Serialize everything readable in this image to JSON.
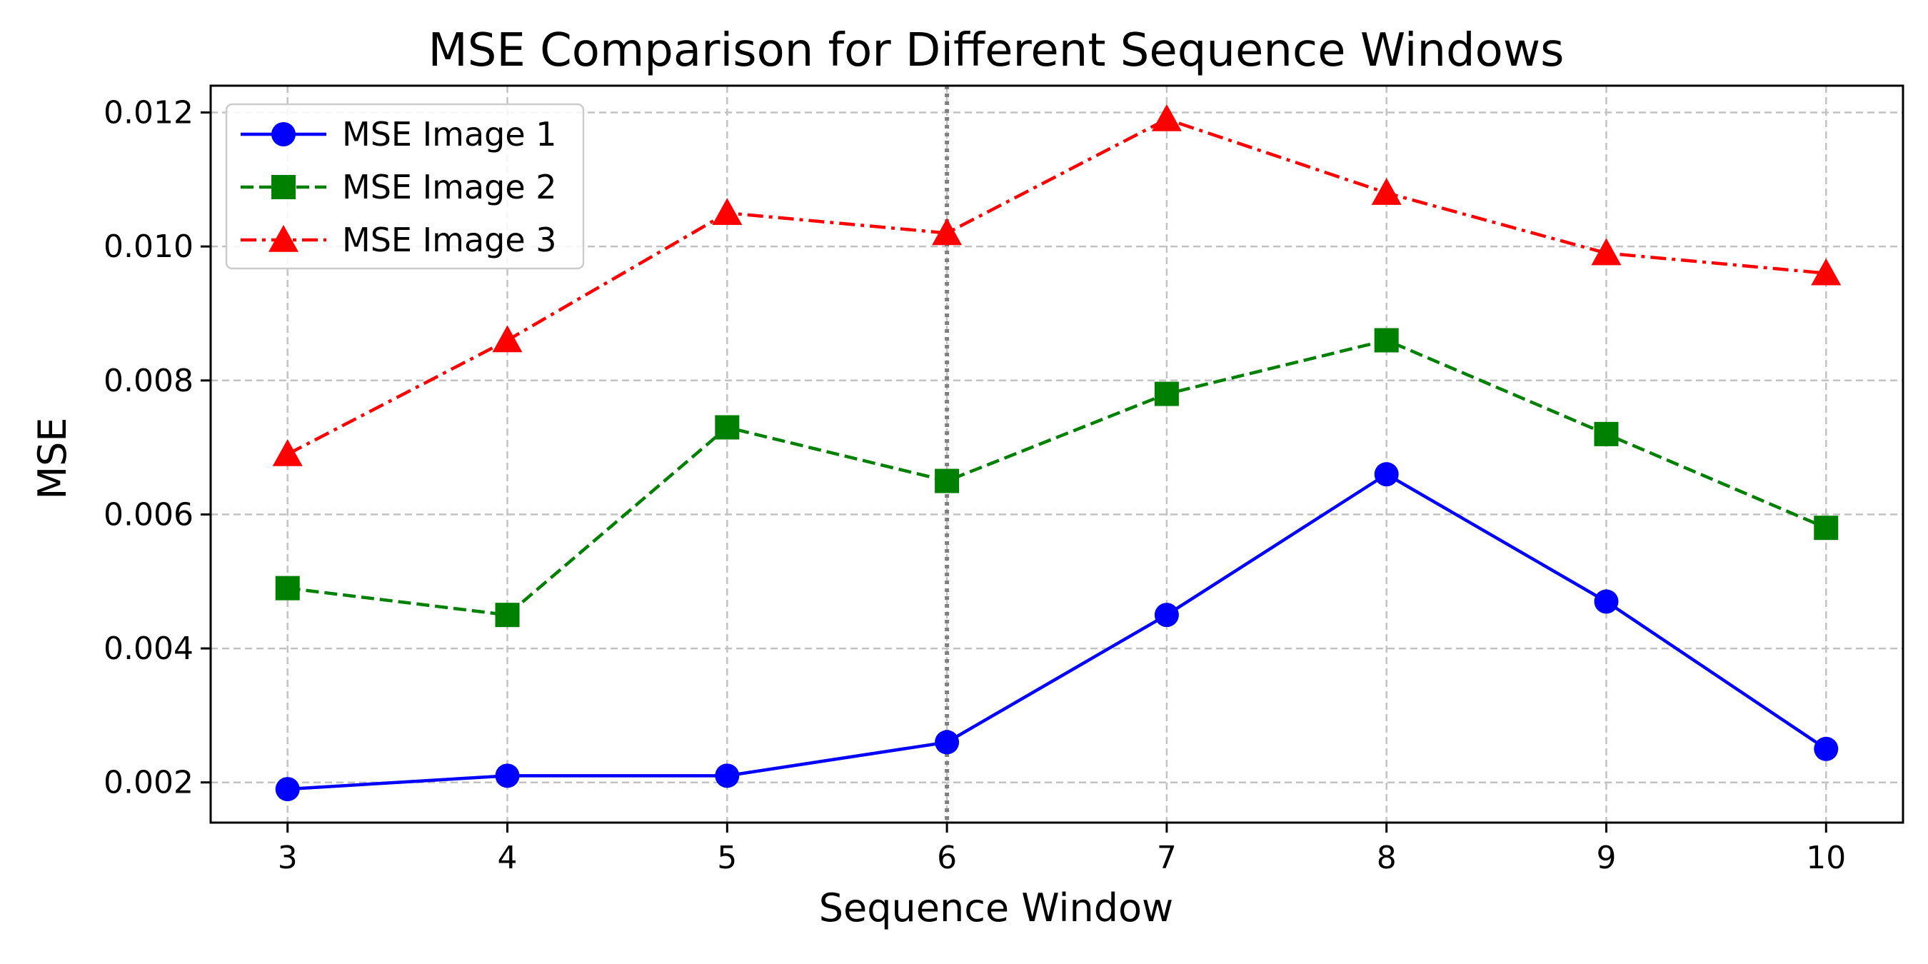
{
  "chart_data": {
    "type": "line",
    "title": "MSE Comparison for Different Sequence Windows",
    "xlabel": "Sequence Window",
    "ylabel": "MSE",
    "x": [
      3,
      4,
      5,
      6,
      7,
      8,
      9,
      10
    ],
    "xlim": [
      2.65,
      10.35
    ],
    "ylim": [
      0.0014,
      0.0124
    ],
    "xticks": [
      "3",
      "4",
      "5",
      "6",
      "7",
      "8",
      "9",
      "10"
    ],
    "yticks": [
      "0.002",
      "0.004",
      "0.006",
      "0.008",
      "0.010",
      "0.012"
    ],
    "ytick_values": [
      0.002,
      0.004,
      0.006,
      0.008,
      0.01,
      0.012
    ],
    "grid": true,
    "legend_position": "upper-left",
    "reference_line": {
      "x": 6,
      "style": "dotted",
      "color": "#808080"
    },
    "series": [
      {
        "name": "MSE Image 1",
        "color": "#0000ff",
        "marker": "circle",
        "line_style": "solid",
        "values": [
          0.0019,
          0.0021,
          0.0021,
          0.0026,
          0.0045,
          0.0066,
          0.0047,
          0.0025
        ]
      },
      {
        "name": "MSE Image 2",
        "color": "#008000",
        "marker": "square",
        "line_style": "dashed",
        "values": [
          0.0049,
          0.0045,
          0.0073,
          0.0065,
          0.0078,
          0.0086,
          0.0072,
          0.0058
        ]
      },
      {
        "name": "MSE Image 3",
        "color": "#ff0000",
        "marker": "triangle",
        "line_style": "dashdot",
        "values": [
          0.0069,
          0.0086,
          0.0105,
          0.0102,
          0.0119,
          0.0108,
          0.0099,
          0.0096
        ]
      }
    ]
  }
}
